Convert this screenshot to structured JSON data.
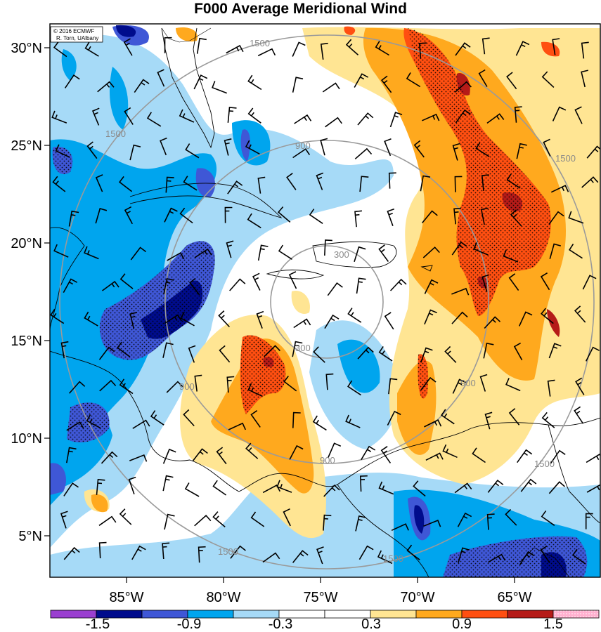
{
  "title": "F000 Average Meridional Wind",
  "credit": {
    "line1": "© 2016 ECMWF",
    "line2": "R. Torn, UAlbany"
  },
  "map": {
    "lat_labels": [
      "30°N",
      "25°N",
      "20°N",
      "15°N",
      "10°N",
      "5°N"
    ],
    "lon_labels": [
      "85°W",
      "80°W",
      "75°W",
      "70°W",
      "65°W"
    ],
    "range_ring_labels": [
      "300",
      "300",
      "900",
      "900",
      "900",
      "900",
      "1500",
      "1500",
      "1500",
      "1500",
      "1500",
      "1500"
    ]
  },
  "colorbar": {
    "labels": [
      "-1.5",
      "-0.9",
      "-0.3",
      "0.3",
      "0.9",
      "1.5"
    ],
    "colors": [
      "#9a3fd0",
      "#000c8c",
      "#3f57d6",
      "#00a5ee",
      "#a6daf7",
      "#ffffff",
      "#ffffff",
      "#ffe593",
      "#ffa91e",
      "#ff4f11",
      "#b51b18",
      "#ffb0cf"
    ]
  }
}
